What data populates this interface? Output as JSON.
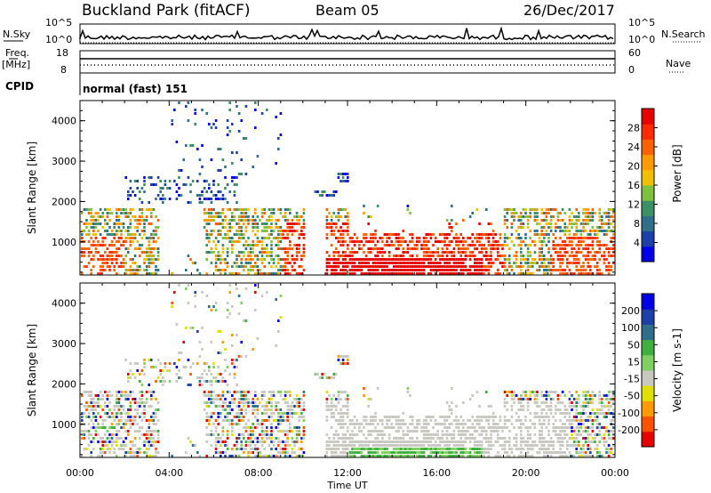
{
  "header": {
    "station": "Buckland Park (fitACF)",
    "beam": "Beam 05",
    "date": "26/Dec/2017"
  },
  "noise_panel": {
    "left_label": "N.Sky",
    "left_ticks": [
      "10^5",
      "10^0"
    ],
    "right_label": "N.Search",
    "right_ticks": [
      "10^5",
      "10^0"
    ]
  },
  "freq_panel": {
    "left_label_1": "Freq.",
    "left_label_2": "[MHz]",
    "left_ticks": [
      "18",
      "8"
    ],
    "right_label": "Nave",
    "right_ticks": [
      "60",
      "0"
    ]
  },
  "cpid_panel": {
    "label": "CPID",
    "text": "normal (fast) 151"
  },
  "colors": {
    "power_scale": [
      "#0000e6",
      "#1f3fa8",
      "#2f6f8a",
      "#3d8f66",
      "#7fc040",
      "#f0c000",
      "#ff9a00",
      "#ff6000",
      "#ff2a00",
      "#e60000"
    ],
    "velocity_scale": [
      "#0000e6",
      "#1f3fa8",
      "#2f6f8a",
      "#3fb040",
      "#7fd060",
      "#c8c8c0",
      "#e0e000",
      "#ff9a00",
      "#ff5000",
      "#e60000"
    ]
  },
  "chart_data": [
    {
      "type": "heatmap",
      "title": "",
      "xlabel": "",
      "ylabel": "Slant Range [km]",
      "x_tick_labels": [
        "00:00",
        "04:00",
        "08:00",
        "12:00",
        "16:00",
        "20:00",
        "00:00"
      ],
      "y_tick_labels": [
        "1000",
        "2000",
        "3000",
        "4000"
      ],
      "ylim": [
        180,
        4500
      ],
      "colorbar": {
        "label": "Power [dB]",
        "ticks": [
          "4",
          "8",
          "12",
          "16",
          "20",
          "24",
          "28"
        ],
        "range": [
          0,
          32
        ]
      }
    },
    {
      "type": "heatmap",
      "title": "",
      "xlabel": "Time UT",
      "ylabel": "Slant Range [km]",
      "x_tick_labels": [
        "00:00",
        "04:00",
        "08:00",
        "12:00",
        "16:00",
        "20:00",
        "00:00"
      ],
      "y_tick_labels": [
        "1000",
        "2000",
        "3000",
        "4000"
      ],
      "ylim": [
        180,
        4500
      ],
      "colorbar": {
        "label": "Velocity [m s-1]",
        "ticks": [
          "200",
          "100",
          "50",
          "15",
          "-15",
          "-50",
          "-100",
          "-200"
        ]
      }
    }
  ]
}
